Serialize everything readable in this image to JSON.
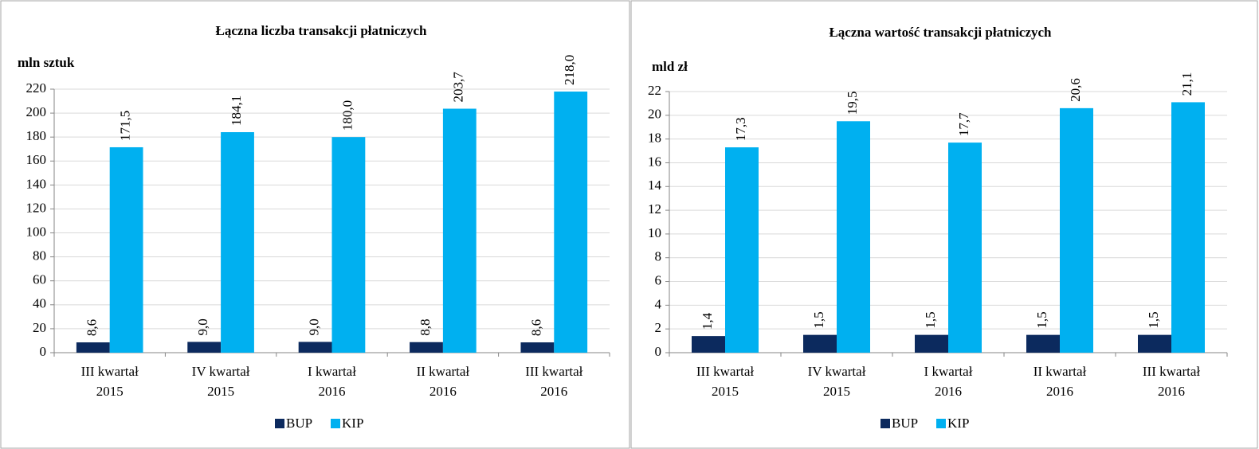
{
  "chart_data": [
    {
      "type": "bar",
      "title": "Łączna liczba transakcji płatniczych",
      "ylabel": "mln sztuk",
      "categories": [
        [
          "III kwartał",
          "2015"
        ],
        [
          "IV kwartał",
          "2015"
        ],
        [
          "I kwartał",
          "2016"
        ],
        [
          "II kwartał",
          "2016"
        ],
        [
          "III kwartał",
          "2016"
        ]
      ],
      "series": [
        {
          "name": "BUP",
          "color": "#0c2a5e",
          "values": [
            8.6,
            9.0,
            9.0,
            8.8,
            8.6
          ],
          "value_labels": [
            "8,6",
            "9,0",
            "9,0",
            "8,8",
            "8,6"
          ]
        },
        {
          "name": "KIP",
          "color": "#00b0f0",
          "values": [
            171.5,
            184.1,
            180.0,
            203.7,
            218.0
          ],
          "value_labels": [
            "171,5",
            "184,1",
            "180,0",
            "203,7",
            "218,0"
          ]
        }
      ],
      "ylim": [
        0,
        220
      ],
      "yticks": [
        0,
        20,
        40,
        60,
        80,
        100,
        120,
        140,
        160,
        180,
        200,
        220
      ],
      "grid": true,
      "legend": "bottom"
    },
    {
      "type": "bar",
      "title": "Łączna wartość transakcji płatniczych",
      "ylabel": "mld zł",
      "categories": [
        [
          "III kwartał",
          "2015"
        ],
        [
          "IV kwartał",
          "2015"
        ],
        [
          "I kwartał",
          "2016"
        ],
        [
          "II kwartał",
          "2016"
        ],
        [
          "III kwartał",
          "2016"
        ]
      ],
      "series": [
        {
          "name": "BUP",
          "color": "#0c2a5e",
          "values": [
            1.4,
            1.5,
            1.5,
            1.5,
            1.5
          ],
          "value_labels": [
            "1,4",
            "1,5",
            "1,5",
            "1,5",
            "1,5"
          ]
        },
        {
          "name": "KIP",
          "color": "#00b0f0",
          "values": [
            17.3,
            19.5,
            17.7,
            20.6,
            21.1
          ],
          "value_labels": [
            "17,3",
            "19,5",
            "17,7",
            "20,6",
            "21,1"
          ]
        }
      ],
      "ylim": [
        0,
        22
      ],
      "yticks": [
        0,
        2,
        4,
        6,
        8,
        10,
        12,
        14,
        16,
        18,
        20,
        22
      ],
      "grid": true,
      "legend": "bottom"
    }
  ]
}
